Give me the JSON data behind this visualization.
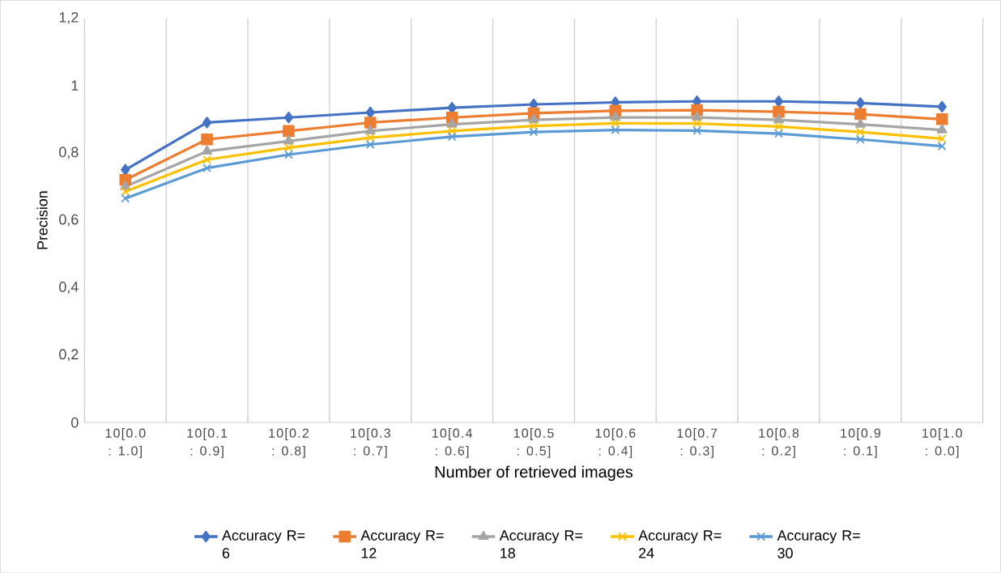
{
  "chart_data": {
    "type": "line",
    "xlabel": "Number of retrieved images",
    "ylabel": "Precision",
    "categories": [
      "10[0.0 : 1.0]",
      "10[0.1 : 0.9]",
      "10[0.2 : 0.8]",
      "10[0.3 : 0.7]",
      "10[0.4 : 0.6]",
      "10[0.5 : 0.5]",
      "10[0.6 : 0.4]",
      "10[0.7 : 0.3]",
      "10[0.8 : 0.2]",
      "10[0.9 : 0.1]",
      "10[1.0 : 0.0]"
    ],
    "series": [
      {
        "name": "Accuracy R= 6",
        "color": "#4472c4",
        "marker": "diamond",
        "values": [
          0.75,
          0.89,
          0.905,
          0.92,
          0.934,
          0.944,
          0.95,
          0.953,
          0.953,
          0.948,
          0.937
        ]
      },
      {
        "name": "Accuracy R= 12",
        "color": "#ed7d31",
        "marker": "square",
        "values": [
          0.72,
          0.84,
          0.865,
          0.89,
          0.905,
          0.918,
          0.925,
          0.927,
          0.922,
          0.915,
          0.9
        ]
      },
      {
        "name": "Accuracy R= 18",
        "color": "#a5a5a5",
        "marker": "triangle",
        "values": [
          0.7,
          0.805,
          0.835,
          0.865,
          0.885,
          0.898,
          0.905,
          0.905,
          0.898,
          0.885,
          0.868
        ]
      },
      {
        "name": "Accuracy R= 24",
        "color": "#ffc000",
        "marker": "cross",
        "values": [
          0.685,
          0.78,
          0.815,
          0.845,
          0.865,
          0.88,
          0.888,
          0.887,
          0.878,
          0.862,
          0.842
        ]
      },
      {
        "name": "Accuracy R= 30",
        "color": "#5b9bd5",
        "marker": "cross",
        "values": [
          0.665,
          0.755,
          0.795,
          0.825,
          0.848,
          0.862,
          0.868,
          0.866,
          0.857,
          0.84,
          0.82
        ]
      }
    ],
    "ylim": [
      0,
      1.2
    ],
    "yticks": [
      {
        "value": 0,
        "label": "0"
      },
      {
        "value": 0.2,
        "label": "0,2"
      },
      {
        "value": 0.4,
        "label": "0,4"
      },
      {
        "value": 0.6,
        "label": "0,6"
      },
      {
        "value": 0.8,
        "label": "0,8"
      },
      {
        "value": 1,
        "label": "1"
      },
      {
        "value": 1.2,
        "label": "1,2"
      }
    ],
    "grid": "x",
    "legend": "bottom",
    "line_style": "solid"
  }
}
